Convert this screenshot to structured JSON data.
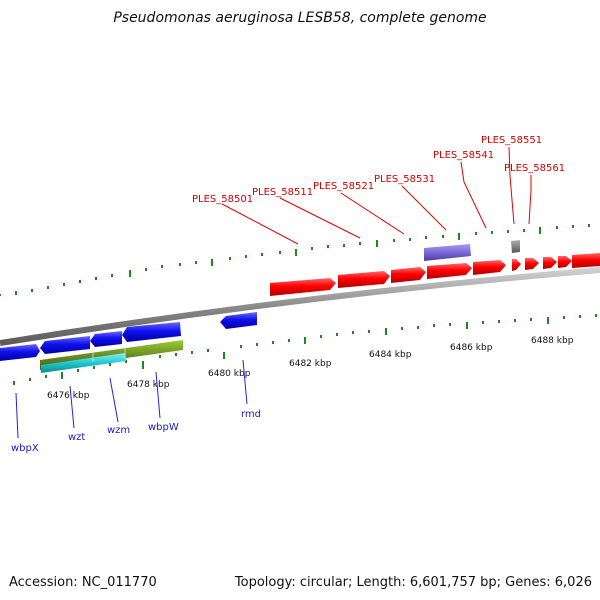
{
  "title": "Pseudomonas aeruginosa LESB58, complete genome",
  "accession": "Accession: NC_011770",
  "summary": "Topology: circular; Length: 6,601,757 bp; Genes: 6,026",
  "colors": {
    "backbone": "#8f8f8f",
    "tick": "#1a8a1a",
    "gene_forward": "#ff0000",
    "gene_reverse": "#1010ee",
    "gene_other": "#7b68d8",
    "gene_pseudo": "#7f7f7f",
    "feature_olive": "#6b8e23",
    "feature_cyan": "#20c8d0",
    "label_forward": "#d00000",
    "label_reverse": "#1a1acc"
  },
  "scale_labels": [
    "6476 kbp",
    "6478 kbp",
    "6480 kbp",
    "6482 kbp",
    "6484 kbp",
    "6486 kbp",
    "6488 kbp"
  ],
  "forward_gene_labels": [
    "PLES_58501",
    "PLES_58511",
    "PLES_58521",
    "PLES_58531",
    "PLES_58541",
    "PLES_58551",
    "PLES_58561"
  ],
  "reverse_gene_labels": [
    "wbpX",
    "wzt",
    "wzm",
    "wbpW",
    "rmd"
  ]
}
